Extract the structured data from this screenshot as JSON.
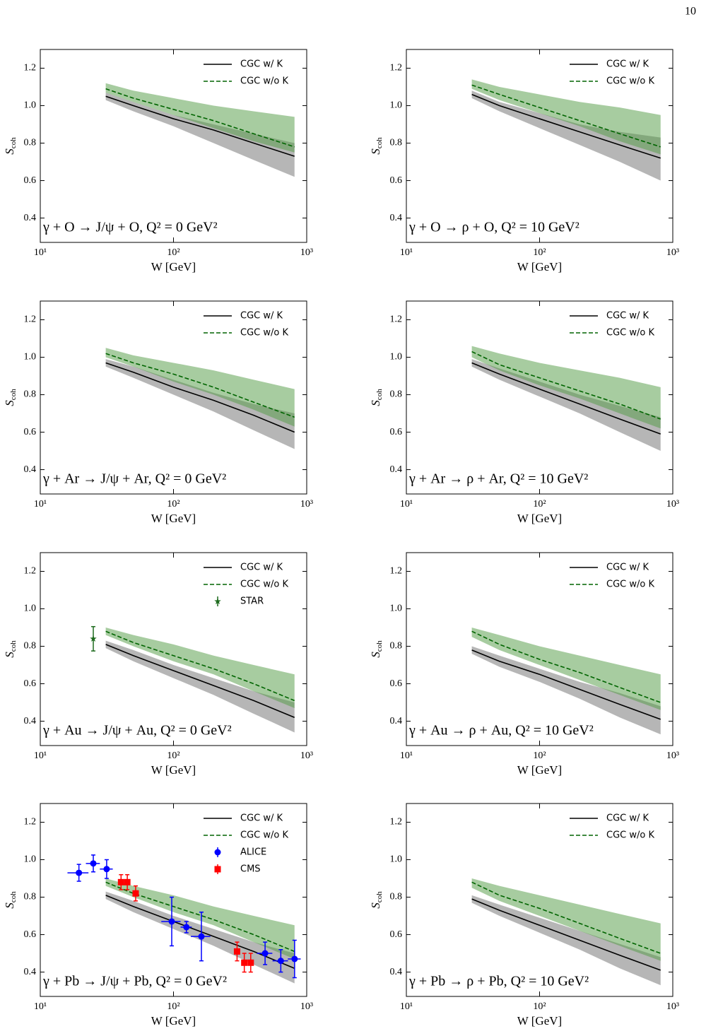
{
  "page_number": "10",
  "chart_data": [
    {
      "type": "line",
      "annotation": "γ + O → J/ψ + O, Q² = 0 GeV²",
      "xlabel": "W [GeV]",
      "ylabel": "S",
      "ylabel_subscript": "coh",
      "xscale": "log",
      "xlim": [
        10,
        1000
      ],
      "ylim": [
        0.27,
        1.3
      ],
      "xticks": [
        {
          "value": 10,
          "label": "10¹"
        },
        {
          "value": 100,
          "label": "10²"
        },
        {
          "value": 1000,
          "label": "10³"
        }
      ],
      "yticks": [
        0.4,
        0.6,
        0.8,
        {
          "value": 1,
          "label": "1.0"
        },
        1.2
      ],
      "legend": "upper right",
      "x": [
        31,
        50,
        100,
        200,
        400,
        810
      ],
      "series": [
        {
          "name": "CGC w/ K",
          "color": "#000000",
          "dash": "solid",
          "band_color": "#6e6e6e",
          "values": [
            1.05,
            1.0,
            0.93,
            0.87,
            0.8,
            0.73
          ],
          "band_lower": [
            1.03,
            0.97,
            0.89,
            0.8,
            0.71,
            0.62
          ],
          "band_upper": [
            1.07,
            1.02,
            0.95,
            0.9,
            0.85,
            0.8
          ]
        },
        {
          "name": "CGC w/o K",
          "color": "#006400",
          "dash": "dashed",
          "band_color": "#4f9a42",
          "values": [
            1.09,
            1.04,
            0.98,
            0.92,
            0.85,
            0.78
          ],
          "band_lower": [
            1.07,
            1.02,
            0.95,
            0.88,
            0.81,
            0.75
          ],
          "band_upper": [
            1.12,
            1.08,
            1.04,
            1.0,
            0.97,
            0.94
          ]
        }
      ]
    },
    {
      "type": "line",
      "annotation": "γ + O → ρ + O, Q² = 10 GeV²",
      "xlabel": "W [GeV]",
      "ylabel": "S",
      "ylabel_subscript": "coh",
      "xscale": "log",
      "xlim": [
        10,
        1000
      ],
      "ylim": [
        0.27,
        1.3
      ],
      "xticks": [
        {
          "value": 10,
          "label": "10¹"
        },
        {
          "value": 100,
          "label": "10²"
        },
        {
          "value": 1000,
          "label": "10³"
        }
      ],
      "yticks": [
        0.4,
        0.6,
        0.8,
        {
          "value": 1,
          "label": "1.0"
        },
        1.2
      ],
      "legend": "upper right",
      "x": [
        31,
        50,
        100,
        200,
        400,
        810
      ],
      "series": [
        {
          "name": "CGC w/ K",
          "color": "#000000",
          "dash": "solid",
          "band_color": "#6e6e6e",
          "values": [
            1.06,
            1.0,
            0.93,
            0.86,
            0.79,
            0.72
          ],
          "band_lower": [
            1.04,
            0.97,
            0.88,
            0.79,
            0.7,
            0.6
          ],
          "band_upper": [
            1.08,
            1.02,
            0.96,
            0.9,
            0.86,
            0.83
          ]
        },
        {
          "name": "CGC w/o K",
          "color": "#006400",
          "dash": "dashed",
          "band_color": "#4f9a42",
          "values": [
            1.11,
            1.06,
            0.99,
            0.92,
            0.85,
            0.78
          ],
          "band_lower": [
            1.09,
            1.03,
            0.96,
            0.89,
            0.81,
            0.74
          ],
          "band_upper": [
            1.14,
            1.1,
            1.06,
            1.02,
            0.99,
            0.95
          ]
        }
      ]
    },
    {
      "type": "line",
      "annotation": "γ + Ar → J/ψ + Ar, Q² = 0 GeV²",
      "xlabel": "W [GeV]",
      "ylabel": "S",
      "ylabel_subscript": "coh",
      "xscale": "log",
      "xlim": [
        10,
        1000
      ],
      "ylim": [
        0.27,
        1.3
      ],
      "xticks": [
        {
          "value": 10,
          "label": "10¹"
        },
        {
          "value": 100,
          "label": "10²"
        },
        {
          "value": 1000,
          "label": "10³"
        }
      ],
      "yticks": [
        0.4,
        0.6,
        0.8,
        {
          "value": 1,
          "label": "1.0"
        },
        1.2
      ],
      "legend": "upper right",
      "x": [
        31,
        50,
        100,
        200,
        400,
        810
      ],
      "series": [
        {
          "name": "CGC w/ K",
          "color": "#000000",
          "dash": "solid",
          "band_color": "#6e6e6e",
          "values": [
            0.97,
            0.92,
            0.84,
            0.77,
            0.69,
            0.6
          ],
          "band_lower": [
            0.95,
            0.89,
            0.8,
            0.71,
            0.61,
            0.51
          ],
          "band_upper": [
            0.99,
            0.95,
            0.88,
            0.81,
            0.75,
            0.7
          ]
        },
        {
          "name": "CGC w/o K",
          "color": "#006400",
          "dash": "dashed",
          "band_color": "#4f9a42",
          "values": [
            1.02,
            0.97,
            0.91,
            0.84,
            0.76,
            0.68
          ],
          "band_lower": [
            1.0,
            0.95,
            0.87,
            0.8,
            0.72,
            0.63
          ],
          "band_upper": [
            1.05,
            1.01,
            0.97,
            0.93,
            0.88,
            0.83
          ]
        }
      ]
    },
    {
      "type": "line",
      "annotation": "γ + Ar → ρ + Ar, Q² = 10 GeV²",
      "xlabel": "W [GeV]",
      "ylabel": "S",
      "ylabel_subscript": "coh",
      "xscale": "log",
      "xlim": [
        10,
        1000
      ],
      "ylim": [
        0.27,
        1.3
      ],
      "xticks": [
        {
          "value": 10,
          "label": "10¹"
        },
        {
          "value": 100,
          "label": "10²"
        },
        {
          "value": 1000,
          "label": "10³"
        }
      ],
      "yticks": [
        0.4,
        0.6,
        0.8,
        {
          "value": 1,
          "label": "1.0"
        },
        1.2
      ],
      "legend": "upper right",
      "x": [
        31,
        50,
        100,
        200,
        400,
        810
      ],
      "series": [
        {
          "name": "CGC w/ K",
          "color": "#000000",
          "dash": "solid",
          "band_color": "#6e6e6e",
          "values": [
            0.97,
            0.91,
            0.83,
            0.75,
            0.67,
            0.59
          ],
          "band_lower": [
            0.95,
            0.88,
            0.79,
            0.7,
            0.6,
            0.5
          ],
          "band_upper": [
            0.99,
            0.94,
            0.87,
            0.8,
            0.74,
            0.68
          ]
        },
        {
          "name": "CGC w/o K",
          "color": "#006400",
          "dash": "dashed",
          "band_color": "#4f9a42",
          "values": [
            1.03,
            0.96,
            0.89,
            0.82,
            0.75,
            0.67
          ],
          "band_lower": [
            1.0,
            0.93,
            0.85,
            0.78,
            0.7,
            0.62
          ],
          "band_upper": [
            1.06,
            1.02,
            0.97,
            0.93,
            0.89,
            0.84
          ]
        }
      ]
    },
    {
      "type": "line",
      "annotation": "γ + Au → J/ψ + Au, Q² = 0 GeV²",
      "xlabel": "W [GeV]",
      "ylabel": "S",
      "ylabel_subscript": "coh",
      "xscale": "log",
      "xlim": [
        10,
        1000
      ],
      "ylim": [
        0.27,
        1.3
      ],
      "xticks": [
        {
          "value": 10,
          "label": "10¹"
        },
        {
          "value": 100,
          "label": "10²"
        },
        {
          "value": 1000,
          "label": "10³"
        }
      ],
      "yticks": [
        0.4,
        0.6,
        0.8,
        {
          "value": 1,
          "label": "1.0"
        },
        1.2
      ],
      "legend": "upper right",
      "x": [
        31,
        50,
        100,
        200,
        400,
        810
      ],
      "series": [
        {
          "name": "CGC w/ K",
          "color": "#000000",
          "dash": "solid",
          "band_color": "#6e6e6e",
          "values": [
            0.81,
            0.75,
            0.67,
            0.59,
            0.51,
            0.42
          ],
          "band_lower": [
            0.79,
            0.72,
            0.63,
            0.54,
            0.44,
            0.34
          ],
          "band_upper": [
            0.83,
            0.78,
            0.7,
            0.63,
            0.56,
            0.5
          ]
        },
        {
          "name": "CGC w/o K",
          "color": "#006400",
          "dash": "dashed",
          "band_color": "#4f9a42",
          "values": [
            0.88,
            0.82,
            0.75,
            0.68,
            0.6,
            0.51
          ],
          "band_lower": [
            0.86,
            0.8,
            0.72,
            0.65,
            0.56,
            0.47
          ],
          "band_upper": [
            0.9,
            0.86,
            0.81,
            0.75,
            0.7,
            0.65
          ]
        }
      ],
      "data_series": [
        {
          "name": "STAR",
          "color": "#1e6b1e",
          "marker": "star",
          "x": [
            25
          ],
          "values": [
            0.84
          ],
          "yerr": [
            0.065
          ]
        }
      ]
    },
    {
      "type": "line",
      "annotation": "γ + Au → ρ + Au, Q² = 10 GeV²",
      "xlabel": "W [GeV]",
      "ylabel": "S",
      "ylabel_subscript": "coh",
      "xscale": "log",
      "xlim": [
        10,
        1000
      ],
      "ylim": [
        0.27,
        1.3
      ],
      "xticks": [
        {
          "value": 10,
          "label": "10¹"
        },
        {
          "value": 100,
          "label": "10²"
        },
        {
          "value": 1000,
          "label": "10³"
        }
      ],
      "yticks": [
        0.4,
        0.6,
        0.8,
        {
          "value": 1,
          "label": "1.0"
        },
        1.2
      ],
      "legend": "upper right",
      "x": [
        31,
        50,
        100,
        200,
        400,
        810
      ],
      "series": [
        {
          "name": "CGC w/ K",
          "color": "#000000",
          "dash": "solid",
          "band_color": "#6e6e6e",
          "values": [
            0.78,
            0.72,
            0.65,
            0.57,
            0.49,
            0.41
          ],
          "band_lower": [
            0.76,
            0.69,
            0.61,
            0.52,
            0.42,
            0.33
          ],
          "band_upper": [
            0.8,
            0.75,
            0.68,
            0.61,
            0.55,
            0.48
          ]
        },
        {
          "name": "CGC w/o K",
          "color": "#006400",
          "dash": "dashed",
          "band_color": "#4f9a42",
          "values": [
            0.88,
            0.81,
            0.73,
            0.66,
            0.58,
            0.5
          ],
          "band_lower": [
            0.85,
            0.78,
            0.7,
            0.62,
            0.54,
            0.46
          ],
          "band_upper": [
            0.9,
            0.86,
            0.8,
            0.75,
            0.7,
            0.65
          ]
        }
      ]
    },
    {
      "type": "line",
      "annotation": "γ + Pb → J/ψ + Pb, Q² = 0 GeV²",
      "xlabel": "W [GeV]",
      "ylabel": "S",
      "ylabel_subscript": "coh",
      "xscale": "log",
      "xlim": [
        10,
        1000
      ],
      "ylim": [
        0.27,
        1.3
      ],
      "xticks": [
        {
          "value": 10,
          "label": "10¹"
        },
        {
          "value": 100,
          "label": "10²"
        },
        {
          "value": 1000,
          "label": "10³"
        }
      ],
      "yticks": [
        0.4,
        0.6,
        0.8,
        {
          "value": 1,
          "label": "1.0"
        },
        1.2
      ],
      "legend": "upper right",
      "x": [
        31,
        50,
        100,
        200,
        400,
        810
      ],
      "series": [
        {
          "name": "CGC w/ K",
          "color": "#000000",
          "dash": "solid",
          "band_color": "#6e6e6e",
          "values": [
            0.81,
            0.75,
            0.67,
            0.59,
            0.51,
            0.42
          ],
          "band_lower": [
            0.79,
            0.72,
            0.63,
            0.54,
            0.44,
            0.34
          ],
          "band_upper": [
            0.83,
            0.78,
            0.7,
            0.63,
            0.56,
            0.5
          ]
        },
        {
          "name": "CGC w/o K",
          "color": "#006400",
          "dash": "dashed",
          "band_color": "#4f9a42",
          "values": [
            0.88,
            0.82,
            0.75,
            0.68,
            0.6,
            0.51
          ],
          "band_lower": [
            0.86,
            0.8,
            0.72,
            0.65,
            0.56,
            0.47
          ],
          "band_upper": [
            0.9,
            0.86,
            0.81,
            0.75,
            0.7,
            0.65
          ]
        }
      ],
      "data_series": [
        {
          "name": "ALICE",
          "color": "#0000ff",
          "marker": "circle",
          "x": [
            19.5,
            25,
            31.5,
            97,
            125,
            162,
            487,
            639,
            811
          ],
          "values": [
            0.93,
            0.98,
            0.95,
            0.67,
            0.64,
            0.59,
            0.5,
            0.46,
            0.47
          ],
          "xerr": [
            3.5,
            3,
            3.5,
            16,
            12,
            27,
            65,
            85,
            90
          ],
          "yerr": [
            0.045,
            0.045,
            0.05,
            0.13,
            0.03,
            0.13,
            0.06,
            0.06,
            0.1
          ]
        },
        {
          "name": "CMS",
          "color": "#ff0000",
          "marker": "square",
          "x": [
            40.4,
            45,
            52,
            300,
            340,
            380
          ],
          "values": [
            0.88,
            0.88,
            0.82,
            0.51,
            0.45,
            0.45
          ],
          "yerr": [
            0.04,
            0.04,
            0.04,
            0.05,
            0.05,
            0.05
          ]
        }
      ]
    },
    {
      "type": "line",
      "annotation": "γ + Pb → ρ + Pb, Q² = 10 GeV²",
      "xlabel": "W [GeV]",
      "ylabel": "S",
      "ylabel_subscript": "coh",
      "xscale": "log",
      "xlim": [
        10,
        1000
      ],
      "ylim": [
        0.27,
        1.3
      ],
      "xticks": [
        {
          "value": 10,
          "label": "10¹"
        },
        {
          "value": 100,
          "label": "10²"
        },
        {
          "value": 1000,
          "label": "10³"
        }
      ],
      "yticks": [
        0.4,
        0.6,
        0.8,
        {
          "value": 1,
          "label": "1.0"
        },
        1.2
      ],
      "legend": "upper right",
      "x": [
        31,
        50,
        100,
        200,
        400,
        810
      ],
      "series": [
        {
          "name": "CGC w/ K",
          "color": "#000000",
          "dash": "solid",
          "band_color": "#6e6e6e",
          "values": [
            0.79,
            0.73,
            0.65,
            0.57,
            0.49,
            0.41
          ],
          "band_lower": [
            0.77,
            0.7,
            0.61,
            0.52,
            0.42,
            0.33
          ],
          "band_upper": [
            0.81,
            0.76,
            0.69,
            0.62,
            0.55,
            0.48
          ]
        },
        {
          "name": "CGC w/o K",
          "color": "#006400",
          "dash": "dashed",
          "band_color": "#4f9a42",
          "values": [
            0.88,
            0.81,
            0.74,
            0.66,
            0.58,
            0.5
          ],
          "band_lower": [
            0.85,
            0.78,
            0.7,
            0.62,
            0.54,
            0.46
          ],
          "band_upper": [
            0.9,
            0.86,
            0.81,
            0.76,
            0.71,
            0.66
          ]
        }
      ]
    }
  ]
}
